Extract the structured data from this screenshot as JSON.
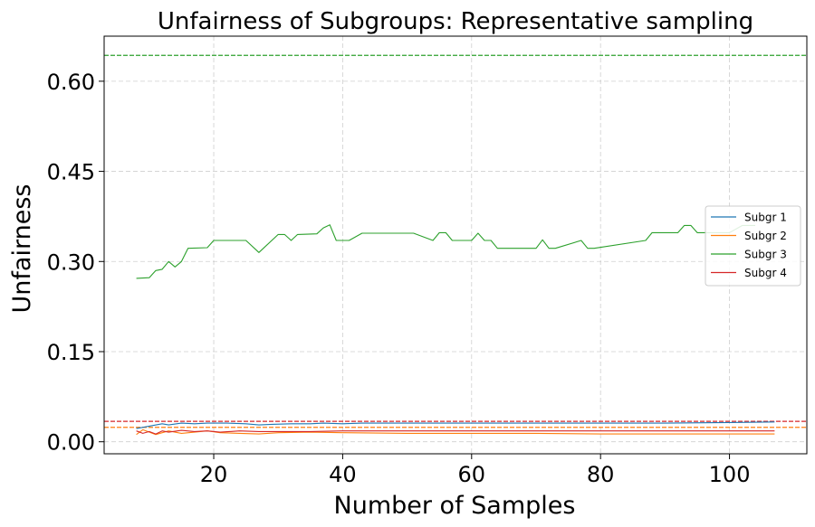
{
  "chart_data": {
    "type": "line",
    "title": "Unfairness of Subgroups: Representative sampling",
    "xlabel": "Number of Samples",
    "ylabel": "Unfairness",
    "xlim": [
      3,
      112
    ],
    "ylim": [
      -0.02,
      0.675
    ],
    "xticks": [
      20,
      40,
      60,
      80,
      100
    ],
    "yticks": [
      0.0,
      0.15,
      0.3,
      0.45,
      0.6
    ],
    "xtick_labels": [
      "20",
      "40",
      "60",
      "80",
      "100"
    ],
    "ytick_labels": [
      "0.00",
      "0.15",
      "0.30",
      "0.45",
      "0.60"
    ],
    "grid": true,
    "legend_position": "center-right",
    "series": [
      {
        "name": "Subgr 1",
        "color": "#1f77b4",
        "x": [
          8,
          10,
          12,
          13,
          15,
          17,
          19,
          22,
          25,
          27,
          29,
          32,
          35,
          37,
          40,
          43,
          46,
          50,
          60,
          70,
          80,
          90,
          100,
          107
        ],
        "y": [
          0.022,
          0.026,
          0.03,
          0.028,
          0.031,
          0.03,
          0.031,
          0.031,
          0.03,
          0.028,
          0.029,
          0.03,
          0.03,
          0.031,
          0.03,
          0.031,
          0.031,
          0.031,
          0.031,
          0.031,
          0.031,
          0.031,
          0.032,
          0.033
        ]
      },
      {
        "name": "Subgr 2",
        "color": "#ff7f0e",
        "x": [
          8,
          9,
          11,
          13,
          15,
          17,
          19,
          21,
          24,
          27,
          30,
          35,
          40,
          50,
          60,
          70,
          80,
          90,
          100,
          107
        ],
        "y": [
          0.012,
          0.02,
          0.012,
          0.018,
          0.014,
          0.016,
          0.018,
          0.015,
          0.014,
          0.013,
          0.015,
          0.016,
          0.015,
          0.014,
          0.014,
          0.014,
          0.013,
          0.013,
          0.013,
          0.013
        ]
      },
      {
        "name": "Subgr 3",
        "color": "#2ca02c",
        "x": [
          8,
          10,
          11,
          12,
          13,
          14,
          15,
          16,
          19,
          20,
          25,
          27,
          30,
          31,
          32,
          33,
          36,
          37,
          38,
          39,
          41,
          43,
          44,
          51,
          54,
          55,
          56,
          57,
          60,
          61,
          62,
          63,
          64,
          70,
          71,
          72,
          73,
          77,
          78,
          79,
          87,
          88,
          92,
          93,
          94,
          95,
          100,
          102,
          104
        ],
        "y": [
          0.272,
          0.273,
          0.285,
          0.287,
          0.3,
          0.291,
          0.3,
          0.322,
          0.323,
          0.335,
          0.335,
          0.315,
          0.345,
          0.345,
          0.335,
          0.345,
          0.346,
          0.356,
          0.361,
          0.335,
          0.335,
          0.347,
          0.347,
          0.347,
          0.335,
          0.348,
          0.348,
          0.335,
          0.335,
          0.347,
          0.335,
          0.335,
          0.322,
          0.322,
          0.336,
          0.322,
          0.322,
          0.335,
          0.322,
          0.322,
          0.335,
          0.348,
          0.348,
          0.36,
          0.36,
          0.348,
          0.348,
          0.36,
          0.36
        ]
      },
      {
        "name": "Subgr 4",
        "color": "#d62728",
        "x": [
          8,
          9,
          10,
          11,
          12,
          13,
          15,
          17,
          19,
          21,
          24,
          27,
          30,
          35,
          40,
          50,
          60,
          70,
          80,
          90,
          100,
          107
        ],
        "y": [
          0.018,
          0.014,
          0.017,
          0.013,
          0.018,
          0.016,
          0.019,
          0.017,
          0.018,
          0.016,
          0.018,
          0.017,
          0.017,
          0.017,
          0.018,
          0.018,
          0.018,
          0.018,
          0.018,
          0.018,
          0.018,
          0.018
        ]
      }
    ],
    "reference_lines": [
      {
        "y": 0.643,
        "color": "#2ca02c"
      },
      {
        "y": 0.034,
        "color": "#d62728"
      },
      {
        "y": 0.024,
        "color": "#ff7f0e"
      }
    ]
  }
}
